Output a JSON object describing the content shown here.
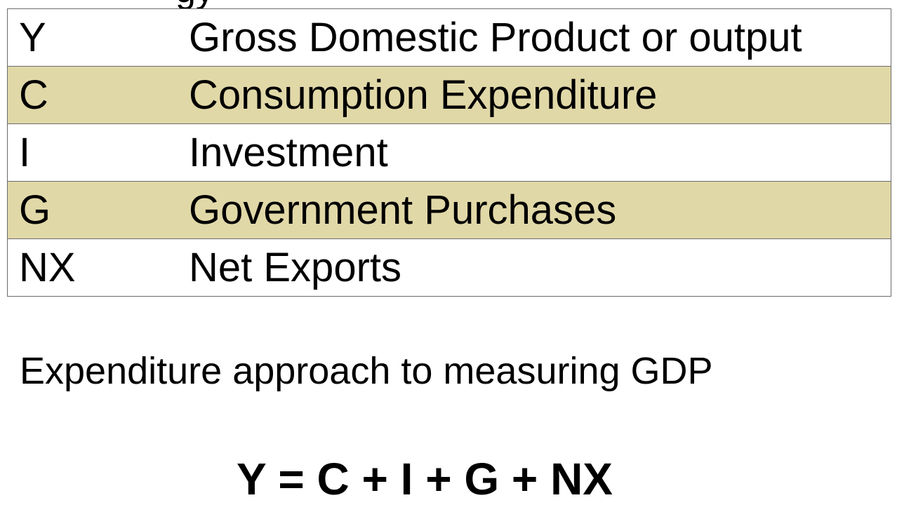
{
  "variables_table": {
    "rows": [
      {
        "symbol": "Y",
        "definition": "Gross Domestic Product or output",
        "shaded": false
      },
      {
        "symbol": "C",
        "definition": "Consumption Expenditure",
        "shaded": true
      },
      {
        "symbol": "I",
        "definition": "Investment",
        "shaded": false
      },
      {
        "symbol": "G",
        "definition": "Government Purchases",
        "shaded": true
      },
      {
        "symbol": "NX",
        "definition": "Net Exports",
        "shaded": false
      }
    ],
    "shade_color": "#e1d8a8",
    "border_color": "#6b6b6b"
  },
  "caption": "Expenditure approach to measuring GDP",
  "equation": "Y = C + I + G + NX"
}
